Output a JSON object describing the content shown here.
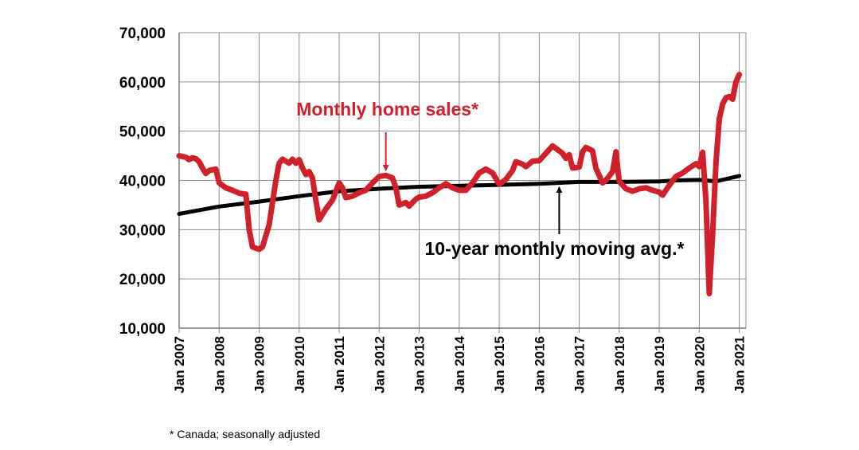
{
  "chart_data": {
    "type": "line",
    "ylim": [
      10000,
      70000
    ],
    "yticks": [
      10000,
      20000,
      30000,
      40000,
      50000,
      60000,
      70000
    ],
    "ytick_labels": [
      "10,000",
      "20,000",
      "30,000",
      "40,000",
      "50,000",
      "60,000",
      "70,000"
    ],
    "xlim": [
      "2007-01",
      "2021-03"
    ],
    "xtick_labels": [
      "Jan 2007",
      "Jan 2008",
      "Jan 2009",
      "Jan 2010",
      "Jan 2011",
      "Jan 2012",
      "Jan 2013",
      "Jan 2014",
      "Jan 2015",
      "Jan 2016",
      "Jan 2017",
      "Jan 2018",
      "Jan 2019",
      "Jan 2020",
      "Jan 2021"
    ],
    "grid": true,
    "series": [
      {
        "name": "Monthly home sales*",
        "color": "#d0202a",
        "points": [
          [
            "2007-01",
            45000
          ],
          [
            "2007-03",
            44700
          ],
          [
            "2007-04",
            44200
          ],
          [
            "2007-05",
            44600
          ],
          [
            "2007-06",
            44400
          ],
          [
            "2007-07",
            43800
          ],
          [
            "2007-08",
            42500
          ],
          [
            "2007-09",
            41400
          ],
          [
            "2007-10",
            42000
          ],
          [
            "2007-12",
            42300
          ],
          [
            "2008-01",
            39500
          ],
          [
            "2008-03",
            38500
          ],
          [
            "2008-05",
            38000
          ],
          [
            "2008-07",
            37400
          ],
          [
            "2008-09",
            37200
          ],
          [
            "2008-10",
            30000
          ],
          [
            "2008-11",
            26500
          ],
          [
            "2009-01",
            26000
          ],
          [
            "2009-02",
            26500
          ],
          [
            "2009-04",
            31000
          ],
          [
            "2009-06",
            40000
          ],
          [
            "2009-07",
            43500
          ],
          [
            "2009-08",
            44300
          ],
          [
            "2009-10",
            43500
          ],
          [
            "2009-11",
            44300
          ],
          [
            "2009-12",
            43500
          ],
          [
            "2010-01",
            44200
          ],
          [
            "2010-02",
            42500
          ],
          [
            "2010-03",
            41200
          ],
          [
            "2010-04",
            41800
          ],
          [
            "2010-05",
            40500
          ],
          [
            "2010-06",
            36000
          ],
          [
            "2010-07",
            32000
          ],
          [
            "2010-09",
            34200
          ],
          [
            "2010-11",
            36000
          ],
          [
            "2011-01",
            39500
          ],
          [
            "2011-02",
            38500
          ],
          [
            "2011-03",
            36500
          ],
          [
            "2011-05",
            36800
          ],
          [
            "2011-07",
            37500
          ],
          [
            "2011-09",
            38000
          ],
          [
            "2011-11",
            39500
          ],
          [
            "2012-01",
            40800
          ],
          [
            "2012-03",
            41000
          ],
          [
            "2012-05",
            40500
          ],
          [
            "2012-06",
            38500
          ],
          [
            "2012-07",
            35000
          ],
          [
            "2012-09",
            35500
          ],
          [
            "2012-10",
            34800
          ],
          [
            "2012-12",
            36200
          ],
          [
            "2013-01",
            36600
          ],
          [
            "2013-03",
            36800
          ],
          [
            "2013-05",
            37500
          ],
          [
            "2013-07",
            38500
          ],
          [
            "2013-09",
            39300
          ],
          [
            "2013-11",
            38500
          ],
          [
            "2014-01",
            38000
          ],
          [
            "2014-03",
            38000
          ],
          [
            "2014-05",
            39500
          ],
          [
            "2014-07",
            41500
          ],
          [
            "2014-09",
            42300
          ],
          [
            "2014-11",
            41500
          ],
          [
            "2015-01",
            39200
          ],
          [
            "2015-03",
            40200
          ],
          [
            "2015-05",
            42000
          ],
          [
            "2015-06",
            43800
          ],
          [
            "2015-08",
            43300
          ],
          [
            "2015-09",
            42800
          ],
          [
            "2015-11",
            43900
          ],
          [
            "2016-01",
            44000
          ],
          [
            "2016-03",
            45500
          ],
          [
            "2016-05",
            47000
          ],
          [
            "2016-06",
            46500
          ],
          [
            "2016-08",
            45500
          ],
          [
            "2016-09",
            44500
          ],
          [
            "2016-10",
            45200
          ],
          [
            "2016-11",
            42500
          ],
          [
            "2017-01",
            42700
          ],
          [
            "2017-02",
            45800
          ],
          [
            "2017-03",
            46700
          ],
          [
            "2017-05",
            46000
          ],
          [
            "2017-06",
            42500
          ],
          [
            "2017-08",
            39500
          ],
          [
            "2017-09",
            40000
          ],
          [
            "2017-11",
            41800
          ],
          [
            "2017-12",
            45800
          ],
          [
            "2018-01",
            39800
          ],
          [
            "2018-03",
            38300
          ],
          [
            "2018-05",
            37800
          ],
          [
            "2018-07",
            38300
          ],
          [
            "2018-09",
            38500
          ],
          [
            "2018-11",
            38000
          ],
          [
            "2019-01",
            37600
          ],
          [
            "2019-02",
            37000
          ],
          [
            "2019-04",
            39000
          ],
          [
            "2019-06",
            40800
          ],
          [
            "2019-08",
            41500
          ],
          [
            "2019-10",
            42500
          ],
          [
            "2019-12",
            43400
          ],
          [
            "2020-01",
            42800
          ],
          [
            "2020-02",
            45700
          ],
          [
            "2020-03",
            36000
          ],
          [
            "2020-04",
            17000
          ],
          [
            "2020-05",
            29000
          ],
          [
            "2020-06",
            43500
          ],
          [
            "2020-07",
            52500
          ],
          [
            "2020-08",
            55500
          ],
          [
            "2020-09",
            56800
          ],
          [
            "2020-10",
            57000
          ],
          [
            "2020-11",
            56500
          ],
          [
            "2020-12",
            60000
          ],
          [
            "2021-01",
            61500
          ]
        ]
      },
      {
        "name": "10-year monthly moving avg.*",
        "color": "#000000",
        "points": [
          [
            "2007-01",
            33200
          ],
          [
            "2008-01",
            34700
          ],
          [
            "2009-01",
            35700
          ],
          [
            "2010-01",
            36800
          ],
          [
            "2011-01",
            37800
          ],
          [
            "2012-01",
            38300
          ],
          [
            "2013-01",
            38700
          ],
          [
            "2014-01",
            38900
          ],
          [
            "2015-01",
            39100
          ],
          [
            "2016-01",
            39300
          ],
          [
            "2017-01",
            39700
          ],
          [
            "2018-01",
            39700
          ],
          [
            "2019-01",
            39800
          ],
          [
            "2019-06",
            40000
          ],
          [
            "2020-01",
            40100
          ],
          [
            "2020-06",
            39800
          ],
          [
            "2021-01",
            40900
          ]
        ]
      }
    ],
    "annotations": [
      {
        "text": "Monthly home sales*",
        "color": "#d0202a",
        "arrow_to": [
          "2012-03",
          41200
        ]
      },
      {
        "text": "10-year monthly moving avg.*",
        "color": "#000000",
        "arrow_to": [
          "2016-07",
          39600
        ]
      }
    ]
  },
  "footnote": "* Canada; seasonally adjusted"
}
